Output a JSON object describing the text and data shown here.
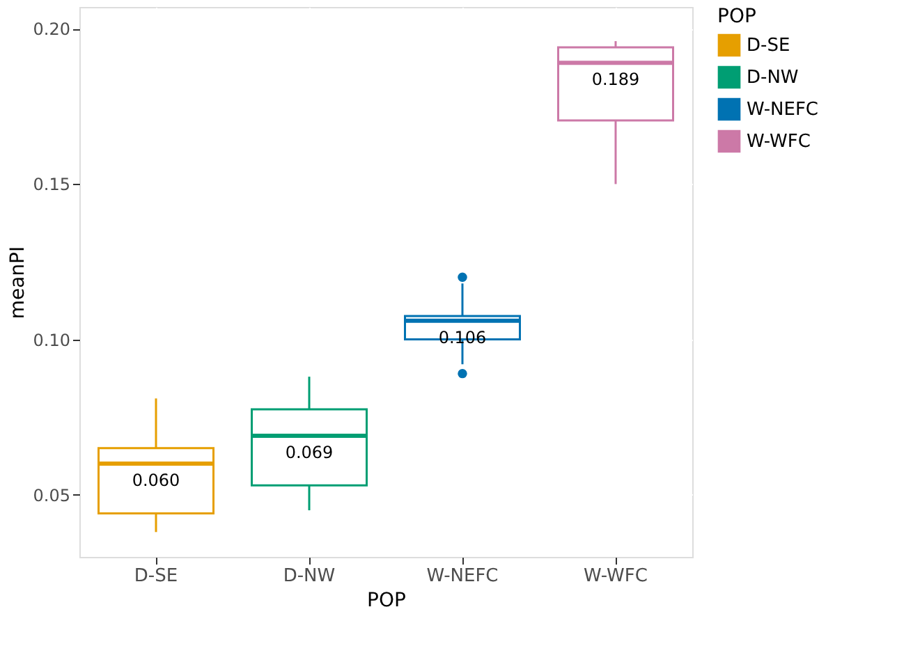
{
  "chart_data": {
    "type": "box",
    "xlabel": "POP",
    "ylabel": "meanPI",
    "legend_title": "POP",
    "categories": [
      "D-SE",
      "D-NW",
      "W-NEFC",
      "W-WFC"
    ],
    "series": [
      {
        "name": "D-SE",
        "color": "#e69f00",
        "boxes": [
          {
            "low": 0.038,
            "q1": 0.044,
            "median": 0.06,
            "q3": 0.065,
            "high": 0.081
          },
          null,
          null,
          null
        ],
        "value_labels": [
          "0.060",
          null,
          null,
          null
        ]
      },
      {
        "name": "D-NW",
        "color": "#009e73",
        "boxes": [
          null,
          {
            "low": 0.045,
            "q1": 0.053,
            "median": 0.069,
            "q3": 0.0775,
            "high": 0.088
          },
          null,
          null
        ],
        "value_labels": [
          null,
          "0.069",
          null,
          null
        ]
      },
      {
        "name": "W-NEFC",
        "color": "#0072b2",
        "boxes": [
          null,
          null,
          {
            "low": 0.092,
            "q1": 0.1,
            "median": 0.106,
            "q3": 0.1075,
            "high": 0.118,
            "outliers": [
              0.12,
              0.089
            ]
          },
          null
        ],
        "value_labels": [
          null,
          null,
          "0.106",
          null
        ]
      },
      {
        "name": "W-WFC",
        "color": "#cc79a7",
        "boxes": [
          null,
          null,
          null,
          {
            "low": 0.15,
            "q1": 0.1705,
            "median": 0.189,
            "q3": 0.194,
            "high": 0.196
          }
        ],
        "value_labels": [
          null,
          null,
          null,
          "0.189"
        ]
      }
    ],
    "data_labels": true,
    "ylim": [
      0.03,
      0.207
    ],
    "yticks": [
      {
        "value": 0.05,
        "label": "0.05"
      },
      {
        "value": 0.1,
        "label": "0.10"
      },
      {
        "value": 0.15,
        "label": "0.15"
      },
      {
        "value": 0.2,
        "label": "0.20"
      }
    ],
    "grid": true,
    "legend": "right"
  }
}
